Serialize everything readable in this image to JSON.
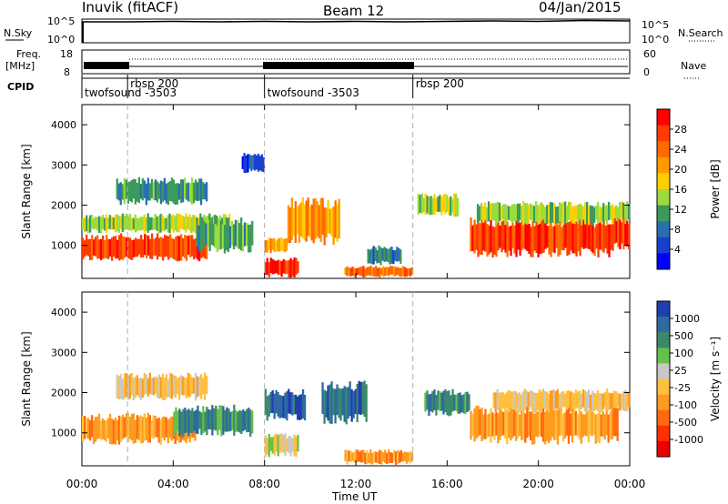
{
  "header": {
    "station": "Inuvik (fitACF)",
    "beam": "Beam 12",
    "date": "04/Jan/2015"
  },
  "top_panels": {
    "nsky_label": "N.Sky",
    "nsky_ticks": [
      "10^5",
      "10^0"
    ],
    "nsearch_label": "N.Search",
    "freq_label_1": "Freq.",
    "freq_label_2": "[MHz]",
    "freq_ticks": [
      "18",
      "8"
    ],
    "nave_label": "Nave",
    "nave_ticks": [
      "60",
      "0"
    ],
    "nsearch_ticks": [
      "10^5",
      "10^0"
    ],
    "cpid_label": "CPID",
    "cpid_segments": [
      {
        "label": "twofsound -3503",
        "start_h": 0.0,
        "end_h": 2.0,
        "label_row": 2
      },
      {
        "label": "rbsp 200",
        "start_h": 2.0,
        "end_h": 8.0,
        "label_row": 1
      },
      {
        "label": "twofsound -3503",
        "start_h": 8.0,
        "end_h": 14.5,
        "label_row": 2
      },
      {
        "label": "rbsp 200",
        "start_h": 14.5,
        "end_h": 24.0,
        "label_row": 1
      }
    ],
    "cpid_boundaries_h": [
      2.0,
      8.0,
      14.5
    ]
  },
  "axes": {
    "ylabel": "Slant Range [km]",
    "yticks": [
      1000,
      2000,
      3000,
      4000
    ],
    "ylim": [
      180,
      4500
    ],
    "xlabel": "Time UT",
    "xticks": [
      "00:00",
      "04:00",
      "08:00",
      "12:00",
      "16:00",
      "20:00",
      "00:00"
    ],
    "xlim_h": [
      0,
      24
    ]
  },
  "power_colorbar": {
    "label": "Power [dB]",
    "ticks": [
      "28",
      "24",
      "20",
      "16",
      "12",
      "8",
      "4"
    ],
    "colors": [
      "#ff0000",
      "#ff3c00",
      "#ff6a00",
      "#ff9a00",
      "#ffd000",
      "#9bdc3c",
      "#3c9a5a",
      "#2a6fae",
      "#1a3fd0",
      "#0000ff"
    ]
  },
  "velocity_colorbar": {
    "label": "Velocity [m s⁻¹]",
    "ticks": [
      "1000",
      "500",
      "100",
      "25",
      "-25",
      "-100",
      "-500",
      "-1000"
    ],
    "colors": [
      "#1f3fb0",
      "#2e6aa0",
      "#3a8a6a",
      "#66c04a",
      "#c8c8c8",
      "#ffc040",
      "#ff9a20",
      "#ff6a10",
      "#ff3000",
      "#ee0000"
    ]
  },
  "chart_data": [
    {
      "type": "line",
      "title": "Inuvik (fitACF)",
      "panel": "N.Sky / N.Search",
      "ylabel": "N.Sky",
      "y2label": "N.Search",
      "x_h": [
        0,
        2,
        4,
        6,
        8,
        10,
        12,
        14,
        16,
        18,
        20,
        22,
        24
      ],
      "series": [
        {
          "name": "N.Sky",
          "values_log10": [
            4.6,
            4.6,
            4.7,
            4.6,
            4.7,
            4.6,
            4.7,
            4.6,
            4.7,
            4.8,
            4.7,
            4.9,
            4.8
          ]
        }
      ]
    },
    {
      "type": "line",
      "panel": "Freq. / Nave",
      "ylabel": "Freq. [MHz]",
      "y2label": "Nave",
      "ylim": [
        8,
        18
      ],
      "x_h": [
        0,
        2,
        8,
        14.5,
        24
      ],
      "series": [
        {
          "name": "Nave",
          "values": [
            40,
            50,
            40,
            50,
            50
          ]
        }
      ]
    },
    {
      "type": "heatmap",
      "title": "Beam 12",
      "panel": "Power",
      "xlabel": "Time UT",
      "ylabel": "Slant Range [km]",
      "xlim_h": [
        0,
        24
      ],
      "ylim": [
        180,
        4500
      ],
      "colorbar": "Power [dB]",
      "regions": [
        {
          "t0": 0.0,
          "t1": 5.5,
          "r0": 600,
          "r1": 1300,
          "power_db": 26
        },
        {
          "t0": 0.0,
          "t1": 6.5,
          "r0": 1300,
          "r1": 1800,
          "power_db": 15
        },
        {
          "t0": 5.0,
          "t1": 7.5,
          "r0": 800,
          "r1": 1700,
          "power_db": 10
        },
        {
          "t0": 1.5,
          "t1": 5.5,
          "r0": 2000,
          "r1": 2700,
          "power_db": 12
        },
        {
          "t0": 7.0,
          "t1": 8.0,
          "r0": 2800,
          "r1": 3300,
          "power_db": 6
        },
        {
          "t0": 8.0,
          "t1": 9.5,
          "r0": 200,
          "r1": 700,
          "power_db": 26
        },
        {
          "t0": 8.0,
          "t1": 9.0,
          "r0": 800,
          "r1": 1200,
          "power_db": 22
        },
        {
          "t0": 9.0,
          "t1": 11.3,
          "r0": 1000,
          "r1": 2200,
          "power_db": 22
        },
        {
          "t0": 11.5,
          "t1": 14.5,
          "r0": 200,
          "r1": 500,
          "power_db": 24
        },
        {
          "t0": 12.5,
          "t1": 14.0,
          "r0": 500,
          "r1": 1000,
          "power_db": 8
        },
        {
          "t0": 14.7,
          "t1": 16.5,
          "r0": 1700,
          "r1": 2300,
          "power_db": 14
        },
        {
          "t0": 17.0,
          "t1": 23.3,
          "r0": 700,
          "r1": 1700,
          "power_db": 28
        },
        {
          "t0": 17.3,
          "t1": 24.0,
          "r0": 1500,
          "r1": 2100,
          "power_db": 14
        },
        {
          "t0": 23.3,
          "t1": 24.0,
          "r0": 900,
          "r1": 1700,
          "power_db": 26
        }
      ]
    },
    {
      "type": "heatmap",
      "panel": "Velocity",
      "xlabel": "Time UT",
      "ylabel": "Slant Range [km]",
      "xlim_h": [
        0,
        24
      ],
      "ylim": [
        180,
        4500
      ],
      "colorbar": "Velocity [m s⁻¹]",
      "regions": [
        {
          "t0": 0.0,
          "t1": 5.0,
          "r0": 700,
          "r1": 1500,
          "velocity": -300
        },
        {
          "t0": 4.0,
          "t1": 7.5,
          "r0": 900,
          "r1": 1700,
          "velocity": 150
        },
        {
          "t0": 1.5,
          "t1": 5.5,
          "r0": 1800,
          "r1": 2500,
          "velocity": -50
        },
        {
          "t0": 8.0,
          "t1": 9.5,
          "r0": 400,
          "r1": 1000,
          "velocity": 0
        },
        {
          "t0": 8.0,
          "t1": 9.8,
          "r0": 1300,
          "r1": 2100,
          "velocity": 600
        },
        {
          "t0": 10.5,
          "t1": 12.5,
          "r0": 1200,
          "r1": 2300,
          "velocity": 800
        },
        {
          "t0": 11.5,
          "t1": 14.5,
          "r0": 200,
          "r1": 600,
          "velocity": -200
        },
        {
          "t0": 15.0,
          "t1": 17.0,
          "r0": 1400,
          "r1": 2100,
          "velocity": 200
        },
        {
          "t0": 17.0,
          "t1": 23.5,
          "r0": 700,
          "r1": 1700,
          "velocity": -400
        },
        {
          "t0": 18.0,
          "t1": 24.0,
          "r0": 1500,
          "r1": 2100,
          "velocity": -80
        }
      ]
    }
  ]
}
